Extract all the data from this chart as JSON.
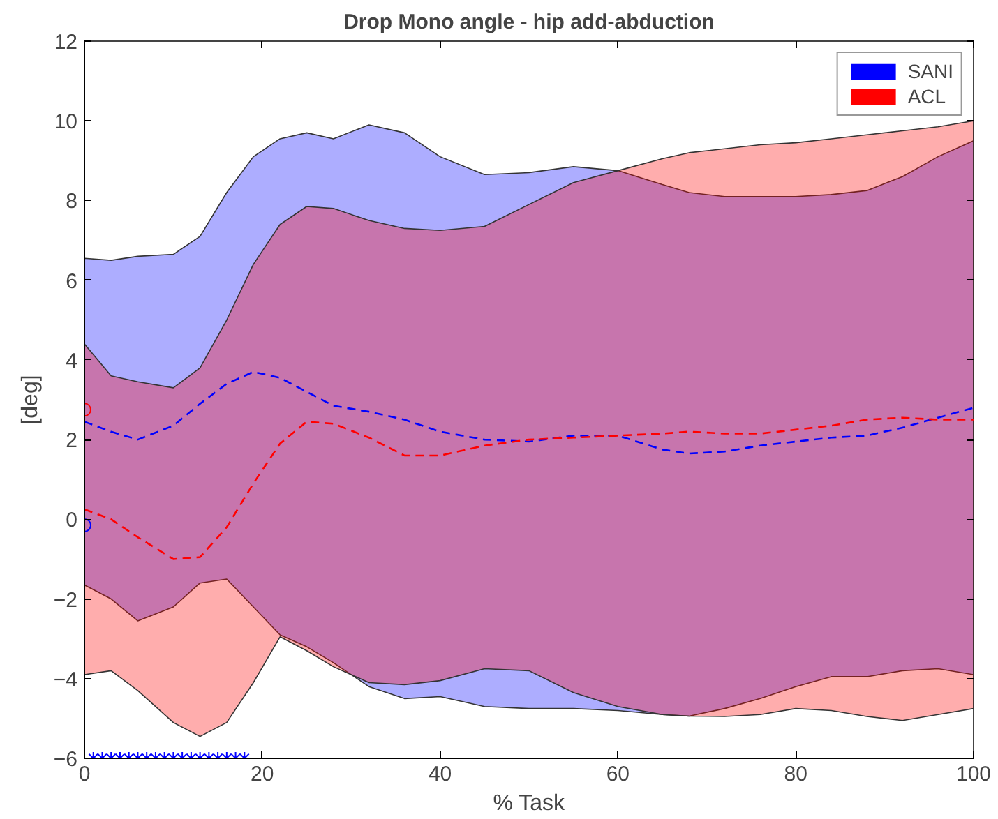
{
  "chart_data": {
    "type": "line",
    "title": "Drop Mono angle - hip add-abduction",
    "xlabel": "% Task",
    "ylabel": "[deg]",
    "xlim": [
      0,
      100
    ],
    "ylim": [
      -6,
      12
    ],
    "xticks": [
      0,
      20,
      40,
      60,
      80,
      100
    ],
    "yticks": [
      -6,
      -4,
      -2,
      0,
      2,
      4,
      6,
      8,
      10,
      12
    ],
    "grid": false,
    "legend": "top right",
    "line_style": "dashed",
    "series": [
      {
        "name": "SANI",
        "color": "#0000ff",
        "x": [
          0,
          3,
          6,
          10,
          13,
          16,
          19,
          22,
          25,
          28,
          32,
          36,
          40,
          45,
          50,
          55,
          60,
          65,
          68,
          72,
          76,
          80,
          84,
          88,
          92,
          96,
          100
        ],
        "values": [
          2.45,
          2.2,
          2.0,
          2.35,
          2.9,
          3.4,
          3.7,
          3.55,
          3.2,
          2.85,
          2.7,
          2.5,
          2.2,
          2.0,
          1.95,
          2.1,
          2.1,
          1.75,
          1.65,
          1.7,
          1.85,
          1.95,
          2.05,
          2.1,
          2.3,
          2.55,
          2.8
        ],
        "lower": [
          -1.65,
          -2.0,
          -2.55,
          -2.2,
          -1.6,
          -1.5,
          -2.2,
          -2.9,
          -3.2,
          -3.6,
          -4.2,
          -4.5,
          -4.45,
          -4.7,
          -4.75,
          -4.75,
          -4.8,
          -4.9,
          -4.94,
          -4.75,
          -4.5,
          -4.2,
          -3.95,
          -3.95,
          -3.8,
          -3.75,
          -3.9
        ],
        "upper": [
          6.55,
          6.5,
          6.6,
          6.65,
          7.1,
          8.2,
          9.1,
          9.55,
          9.7,
          9.55,
          9.9,
          9.7,
          9.1,
          8.65,
          8.7,
          8.85,
          8.75,
          8.4,
          8.2,
          8.1,
          8.1,
          8.1,
          8.15,
          8.25,
          8.6,
          9.1,
          9.5
        ]
      },
      {
        "name": "ACL",
        "color": "#ff0000",
        "x": [
          0,
          3,
          6,
          10,
          13,
          16,
          19,
          22,
          25,
          28,
          32,
          36,
          40,
          45,
          50,
          55,
          60,
          65,
          68,
          72,
          76,
          80,
          84,
          88,
          92,
          96,
          100
        ],
        "values": [
          0.25,
          0.0,
          -0.45,
          -1.0,
          -0.95,
          -0.2,
          0.9,
          1.9,
          2.45,
          2.4,
          2.05,
          1.6,
          1.6,
          1.85,
          2.0,
          2.05,
          2.1,
          2.15,
          2.2,
          2.15,
          2.15,
          2.25,
          2.35,
          2.5,
          2.55,
          2.5,
          2.5
        ],
        "lower": [
          -3.9,
          -3.8,
          -4.3,
          -5.1,
          -5.45,
          -5.1,
          -4.1,
          -2.95,
          -3.3,
          -3.7,
          -4.1,
          -4.15,
          -4.05,
          -3.75,
          -3.8,
          -4.35,
          -4.7,
          -4.9,
          -4.94,
          -4.95,
          -4.9,
          -4.75,
          -4.8,
          -4.95,
          -5.05,
          -4.9,
          -4.75
        ],
        "upper": [
          4.4,
          3.6,
          3.45,
          3.3,
          3.8,
          5.0,
          6.4,
          7.4,
          7.85,
          7.8,
          7.5,
          7.3,
          7.25,
          7.35,
          7.9,
          8.45,
          8.75,
          9.05,
          9.2,
          9.3,
          9.4,
          9.45,
          9.55,
          9.65,
          9.75,
          9.85,
          10.0
        ]
      },
      {
        "type": "scatter",
        "marker": "circle",
        "color": "#ff0000",
        "x": [
          0
        ],
        "values": [
          2.75
        ]
      },
      {
        "type": "scatter",
        "marker": "circle",
        "color": "#0000ff",
        "x": [
          0
        ],
        "values": [
          -0.15
        ]
      },
      {
        "type": "scatter",
        "marker": "cross",
        "color": "#0000ff",
        "x": [
          1,
          2,
          3,
          4,
          5,
          6,
          7,
          8,
          9,
          10,
          11,
          12,
          13,
          14,
          15,
          16,
          17,
          18
        ],
        "values": [
          -6,
          -6,
          -6,
          -6,
          -6,
          -6,
          -6,
          -6,
          -6,
          -6,
          -6,
          -6,
          -6,
          -6,
          -6,
          -6,
          -6,
          -6
        ]
      }
    ]
  }
}
